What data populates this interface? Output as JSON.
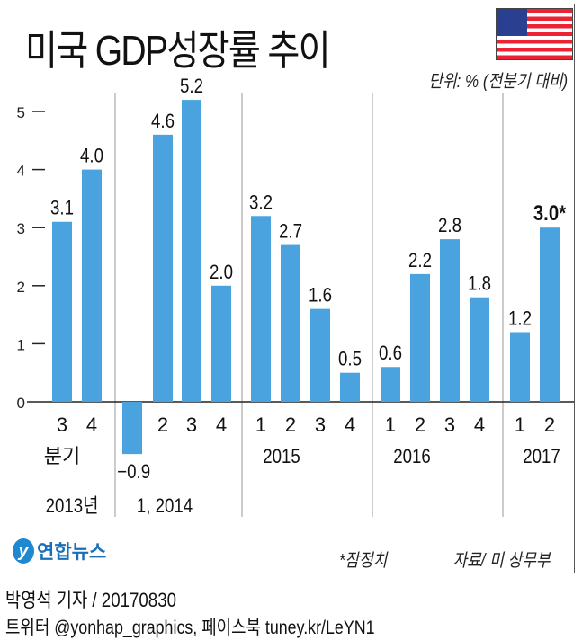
{
  "title": "미국 GDP성장률 추이",
  "unit": "단위: % (전분기 대비)",
  "flag_icon": "us-flag",
  "footnote": "*잠정치",
  "source": "자료/ 미 상무부",
  "logo": "연합뉴스",
  "byline": "박영석 기자 / 20170830",
  "social": "트위터 @yonhap_graphics, 페이스북 tuney.kr/LeYN1",
  "colors": {
    "bar": "#4aa3df"
  },
  "chart_data": {
    "type": "bar",
    "title": "미국 GDP성장률 추이",
    "ylabel": "단위: % (전분기 대비)",
    "ylim": [
      -1,
      5.5
    ],
    "yticks": [
      "0",
      "1",
      "2",
      "3",
      "4",
      "5"
    ],
    "quarter_label": "분기",
    "categories": [
      "3",
      "4",
      "1",
      "2",
      "3",
      "4",
      "1",
      "2",
      "3",
      "4",
      "1",
      "2",
      "3",
      "4",
      "1",
      "2"
    ],
    "values": [
      3.1,
      4.0,
      -0.9,
      4.6,
      5.2,
      2.0,
      3.2,
      2.7,
      1.6,
      0.5,
      0.6,
      2.2,
      2.8,
      1.8,
      1.2,
      3.0
    ],
    "labels": [
      "3.1",
      "4.0",
      "−0.9",
      "4.6",
      "5.2",
      "2.0",
      "3.2",
      "2.7",
      "1.6",
      "0.5",
      "0.6",
      "2.2",
      "2.8",
      "1.8",
      "1.2",
      "3.0*"
    ],
    "years": [
      "2013년",
      "1, 2014",
      "2015",
      "2016",
      "2017"
    ]
  }
}
